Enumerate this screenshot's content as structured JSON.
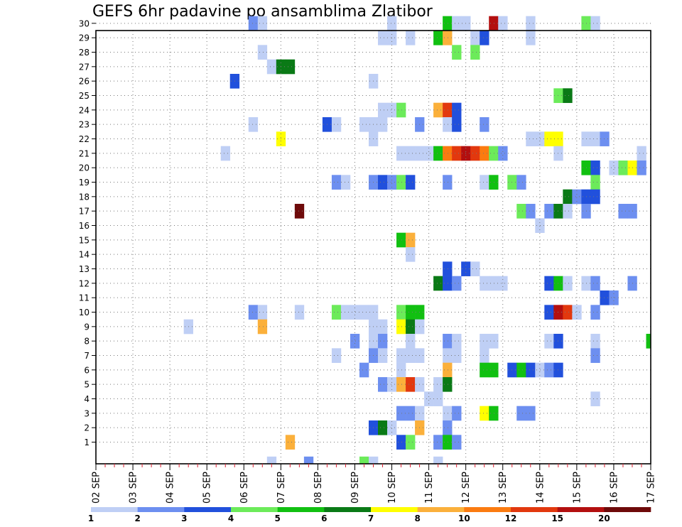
{
  "chart_data": {
    "type": "heatmap",
    "title": "GEFS 6hr padavine po ansamblima Zlatibor",
    "xlabel": "",
    "ylabel": "",
    "x_labels": [
      "02 SEP",
      "03 SEP",
      "04 SEP",
      "05 SEP",
      "06 SEP",
      "07 SEP",
      "08 SEP",
      "09 SEP",
      "10 SEP",
      "11 SEP",
      "12 SEP",
      "13 SEP",
      "14 SEP",
      "15 SEP",
      "16 SEP",
      "17 SEP"
    ],
    "y_labels": [
      "1",
      "2",
      "3",
      "4",
      "5",
      "6",
      "7",
      "8",
      "9",
      "10",
      "11",
      "12",
      "13",
      "14",
      "15",
      "16",
      "17",
      "18",
      "19",
      "20",
      "21",
      "22",
      "23",
      "24",
      "25",
      "26",
      "27",
      "28",
      "29",
      "30"
    ],
    "xlim": [
      0,
      60
    ],
    "ylim": [
      0,
      30
    ],
    "grid": true,
    "legend": "bottom-colorbar",
    "colorbar": {
      "colors": [
        "#bfcff5",
        "#6d8ff0",
        "#2150dc",
        "#6ceb5a",
        "#11c011",
        "#0a7a16",
        "#ffff00",
        "#fbb03b",
        "#fb7b10",
        "#e2380e",
        "#b30f0f",
        "#6e0a0a"
      ],
      "labels": [
        "1",
        "2",
        "3",
        "4",
        "5",
        "6",
        "7",
        "8",
        "10",
        "12",
        "15",
        "20"
      ]
    },
    "cells": [
      [
        30,
        17,
        2
      ],
      [
        30,
        18,
        1
      ],
      [
        30,
        32,
        1
      ],
      [
        30,
        38,
        5
      ],
      [
        30,
        39,
        1
      ],
      [
        30,
        40,
        1
      ],
      [
        30,
        43,
        11
      ],
      [
        30,
        44,
        1
      ],
      [
        30,
        47,
        1
      ],
      [
        30,
        53,
        4
      ],
      [
        30,
        54,
        1
      ],
      [
        29,
        31,
        1
      ],
      [
        29,
        32,
        1
      ],
      [
        29,
        34,
        1
      ],
      [
        29,
        37,
        5
      ],
      [
        29,
        38,
        8
      ],
      [
        29,
        41,
        1
      ],
      [
        29,
        42,
        3
      ],
      [
        29,
        47,
        1
      ],
      [
        28,
        18,
        1
      ],
      [
        28,
        39,
        4
      ],
      [
        28,
        41,
        4
      ],
      [
        27,
        19,
        1
      ],
      [
        27,
        20,
        6
      ],
      [
        27,
        21,
        6
      ],
      [
        26,
        15,
        3
      ],
      [
        26,
        30,
        1
      ],
      [
        25,
        50,
        4
      ],
      [
        25,
        51,
        6
      ],
      [
        24,
        31,
        1
      ],
      [
        24,
        32,
        1
      ],
      [
        24,
        33,
        4
      ],
      [
        24,
        37,
        8
      ],
      [
        24,
        38,
        10
      ],
      [
        24,
        39,
        3
      ],
      [
        23,
        17,
        1
      ],
      [
        23,
        25,
        3
      ],
      [
        23,
        26,
        1
      ],
      [
        23,
        29,
        1
      ],
      [
        23,
        30,
        1
      ],
      [
        23,
        31,
        1
      ],
      [
        23,
        35,
        2
      ],
      [
        23,
        38,
        1
      ],
      [
        23,
        39,
        3
      ],
      [
        23,
        42,
        2
      ],
      [
        22,
        20,
        7
      ],
      [
        22,
        30,
        1
      ],
      [
        22,
        47,
        1
      ],
      [
        22,
        48,
        1
      ],
      [
        22,
        49,
        7
      ],
      [
        22,
        50,
        7
      ],
      [
        22,
        53,
        1
      ],
      [
        22,
        54,
        1
      ],
      [
        22,
        55,
        2
      ],
      [
        21,
        14,
        1
      ],
      [
        21,
        33,
        1
      ],
      [
        21,
        34,
        1
      ],
      [
        21,
        35,
        1
      ],
      [
        21,
        36,
        1
      ],
      [
        21,
        37,
        5
      ],
      [
        21,
        38,
        9
      ],
      [
        21,
        39,
        10
      ],
      [
        21,
        40,
        11
      ],
      [
        21,
        41,
        10
      ],
      [
        21,
        42,
        9
      ],
      [
        21,
        43,
        4
      ],
      [
        21,
        44,
        2
      ],
      [
        21,
        50,
        1
      ],
      [
        21,
        59,
        1
      ],
      [
        20,
        53,
        5
      ],
      [
        20,
        54,
        3
      ],
      [
        20,
        56,
        1
      ],
      [
        20,
        57,
        4
      ],
      [
        20,
        58,
        7
      ],
      [
        20,
        59,
        2
      ],
      [
        19,
        26,
        2
      ],
      [
        19,
        27,
        1
      ],
      [
        19,
        30,
        2
      ],
      [
        19,
        31,
        3
      ],
      [
        19,
        32,
        2
      ],
      [
        19,
        33,
        4
      ],
      [
        19,
        34,
        3
      ],
      [
        19,
        38,
        2
      ],
      [
        19,
        42,
        1
      ],
      [
        19,
        43,
        5
      ],
      [
        19,
        45,
        4
      ],
      [
        19,
        46,
        2
      ],
      [
        19,
        54,
        4
      ],
      [
        18,
        51,
        6
      ],
      [
        18,
        52,
        2
      ],
      [
        18,
        53,
        3
      ],
      [
        18,
        54,
        3
      ],
      [
        17,
        22,
        12
      ],
      [
        17,
        46,
        4
      ],
      [
        17,
        47,
        2
      ],
      [
        17,
        49,
        2
      ],
      [
        17,
        50,
        6
      ],
      [
        17,
        51,
        1
      ],
      [
        17,
        53,
        2
      ],
      [
        17,
        57,
        2
      ],
      [
        17,
        58,
        2
      ],
      [
        16,
        48,
        1
      ],
      [
        15,
        33,
        5
      ],
      [
        15,
        34,
        8
      ],
      [
        14,
        34,
        1
      ],
      [
        13,
        38,
        3
      ],
      [
        13,
        40,
        3
      ],
      [
        13,
        41,
        1
      ],
      [
        12,
        37,
        6
      ],
      [
        12,
        38,
        3
      ],
      [
        12,
        39,
        2
      ],
      [
        12,
        42,
        1
      ],
      [
        12,
        43,
        1
      ],
      [
        12,
        44,
        1
      ],
      [
        12,
        49,
        3
      ],
      [
        12,
        50,
        5
      ],
      [
        12,
        51,
        1
      ],
      [
        12,
        53,
        1
      ],
      [
        12,
        54,
        2
      ],
      [
        12,
        58,
        2
      ],
      [
        11,
        55,
        3
      ],
      [
        11,
        56,
        2
      ],
      [
        10,
        17,
        2
      ],
      [
        10,
        18,
        1
      ],
      [
        10,
        22,
        1
      ],
      [
        10,
        26,
        4
      ],
      [
        10,
        27,
        1
      ],
      [
        10,
        28,
        1
      ],
      [
        10,
        29,
        1
      ],
      [
        10,
        30,
        1
      ],
      [
        10,
        33,
        4
      ],
      [
        10,
        34,
        5
      ],
      [
        10,
        35,
        5
      ],
      [
        10,
        49,
        3
      ],
      [
        10,
        50,
        11
      ],
      [
        10,
        51,
        10
      ],
      [
        10,
        52,
        1
      ],
      [
        10,
        54,
        2
      ],
      [
        9,
        10,
        1
      ],
      [
        9,
        18,
        8
      ],
      [
        9,
        30,
        1
      ],
      [
        9,
        31,
        1
      ],
      [
        9,
        33,
        7
      ],
      [
        9,
        34,
        6
      ],
      [
        9,
        35,
        1
      ],
      [
        8,
        28,
        2
      ],
      [
        8,
        30,
        1
      ],
      [
        8,
        31,
        2
      ],
      [
        8,
        34,
        1
      ],
      [
        8,
        38,
        2
      ],
      [
        8,
        39,
        1
      ],
      [
        8,
        42,
        1
      ],
      [
        8,
        43,
        1
      ],
      [
        8,
        49,
        1
      ],
      [
        8,
        50,
        3
      ],
      [
        8,
        54,
        1
      ],
      [
        8,
        60,
        5
      ],
      [
        7,
        26,
        1
      ],
      [
        7,
        30,
        2
      ],
      [
        7,
        31,
        1
      ],
      [
        7,
        33,
        1
      ],
      [
        7,
        34,
        1
      ],
      [
        7,
        35,
        1
      ],
      [
        7,
        38,
        1
      ],
      [
        7,
        39,
        1
      ],
      [
        7,
        42,
        1
      ],
      [
        7,
        54,
        2
      ],
      [
        6,
        29,
        2
      ],
      [
        6,
        33,
        1
      ],
      [
        6,
        38,
        8
      ],
      [
        6,
        42,
        5
      ],
      [
        6,
        43,
        5
      ],
      [
        6,
        45,
        3
      ],
      [
        6,
        46,
        5
      ],
      [
        6,
        47,
        3
      ],
      [
        6,
        48,
        1
      ],
      [
        6,
        49,
        2
      ],
      [
        6,
        50,
        3
      ],
      [
        5,
        31,
        2
      ],
      [
        5,
        32,
        1
      ],
      [
        5,
        33,
        8
      ],
      [
        5,
        34,
        10
      ],
      [
        5,
        35,
        1
      ],
      [
        5,
        37,
        1
      ],
      [
        5,
        38,
        6
      ],
      [
        4,
        36,
        1
      ],
      [
        4,
        37,
        1
      ],
      [
        4,
        54,
        1
      ],
      [
        3,
        33,
        2
      ],
      [
        3,
        34,
        2
      ],
      [
        3,
        35,
        1
      ],
      [
        3,
        38,
        1
      ],
      [
        3,
        39,
        2
      ],
      [
        3,
        42,
        7
      ],
      [
        3,
        43,
        5
      ],
      [
        3,
        46,
        2
      ],
      [
        3,
        47,
        2
      ],
      [
        2,
        30,
        3
      ],
      [
        2,
        31,
        6
      ],
      [
        2,
        32,
        1
      ],
      [
        2,
        35,
        8
      ],
      [
        2,
        38,
        2
      ],
      [
        1,
        21,
        8
      ],
      [
        1,
        33,
        3
      ],
      [
        1,
        34,
        4
      ],
      [
        1,
        37,
        2
      ],
      [
        1,
        38,
        5
      ],
      [
        1,
        39,
        2
      ],
      [
        0,
        19,
        1
      ],
      [
        0,
        23,
        2
      ],
      [
        0,
        29,
        4
      ],
      [
        0,
        30,
        1
      ],
      [
        0,
        37,
        1
      ]
    ]
  }
}
